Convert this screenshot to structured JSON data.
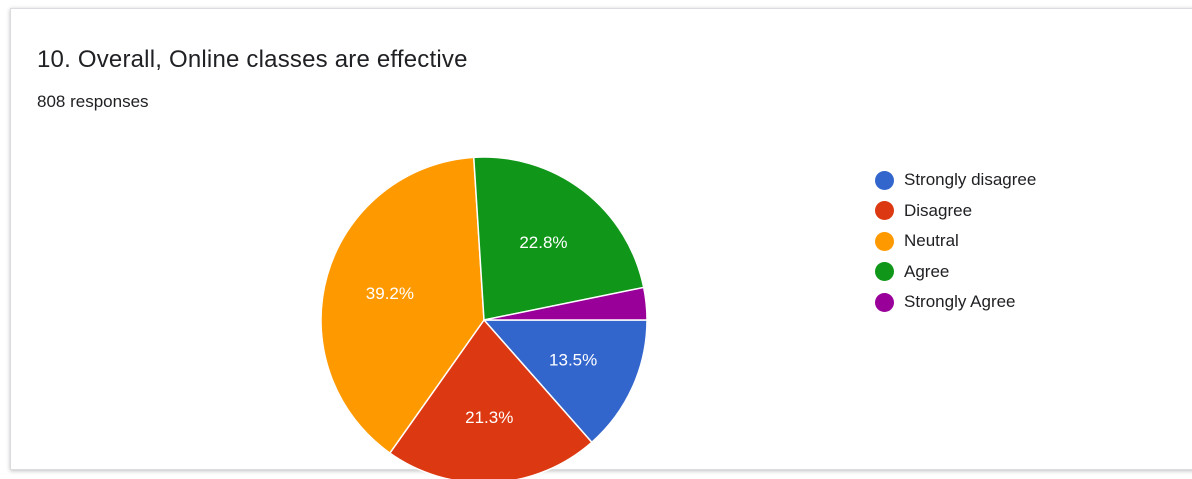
{
  "header": {
    "title": "10. Overall, Online classes are effective",
    "subtitle": "808 responses"
  },
  "chart_data": {
    "type": "pie",
    "title": "10. Overall, Online classes are effective",
    "subtitle": "808 responses",
    "labels": [
      "Strongly disagree",
      "Disagree",
      "Neutral",
      "Agree",
      "Strongly Agree"
    ],
    "values": [
      13.5,
      21.3,
      39.2,
      22.8,
      3.2
    ],
    "data_labels": [
      "13.5%",
      "21.3%",
      "39.2%",
      "22.8%",
      ""
    ],
    "colors": [
      "#3366cc",
      "#dc3912",
      "#ff9900",
      "#109618",
      "#990099"
    ],
    "start": "3 o'clock",
    "direction": "clockwise",
    "legend_position": "right"
  }
}
